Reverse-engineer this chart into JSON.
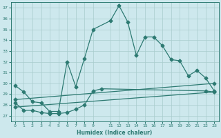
{
  "xlabel": "Humidex (Indice chaleur)",
  "ylabel": "",
  "bg_color": "#cde8ed",
  "grid_color": "#b0d0d8",
  "line_color": "#2d7a72",
  "xlim": [
    -0.5,
    23.5
  ],
  "ylim": [
    26.5,
    37.5
  ],
  "yticks": [
    27,
    28,
    29,
    30,
    31,
    32,
    33,
    34,
    35,
    36,
    37
  ],
  "xtick_labels": [
    "0",
    "1",
    "2",
    "3",
    "4",
    "5",
    "6",
    "7",
    "8",
    "9",
    "11",
    "12",
    "13",
    "14",
    "15",
    "16",
    "17",
    "18",
    "19",
    "20",
    "21",
    "22",
    "23"
  ],
  "xtick_pos": [
    0,
    1,
    2,
    3,
    4,
    5,
    6,
    7,
    8,
    9,
    11,
    12,
    13,
    14,
    15,
    16,
    17,
    18,
    19,
    20,
    21,
    22,
    23
  ],
  "line1_x": [
    0,
    1,
    2,
    3,
    4,
    5,
    6,
    7,
    8,
    9,
    11,
    12,
    13,
    14,
    15,
    16,
    17,
    18,
    19,
    20,
    21,
    22,
    23
  ],
  "line1_y": [
    29.8,
    29.2,
    28.3,
    28.2,
    27.4,
    27.4,
    32.0,
    29.7,
    32.3,
    35.0,
    35.8,
    37.2,
    35.7,
    32.6,
    34.3,
    34.3,
    33.5,
    32.2,
    32.1,
    30.7,
    31.2,
    30.5,
    29.3
  ],
  "line2_x": [
    0,
    1,
    2,
    3,
    4,
    5,
    6,
    7,
    8,
    9,
    10,
    22,
    23
  ],
  "line2_y": [
    28.2,
    27.5,
    27.5,
    27.3,
    27.2,
    27.2,
    27.3,
    27.6,
    28.0,
    29.3,
    29.5,
    29.3,
    29.2
  ],
  "line3_x": [
    0,
    23
  ],
  "line3_y": [
    28.5,
    30.0
  ],
  "line4_x": [
    0,
    23
  ],
  "line4_y": [
    27.8,
    29.2
  ]
}
